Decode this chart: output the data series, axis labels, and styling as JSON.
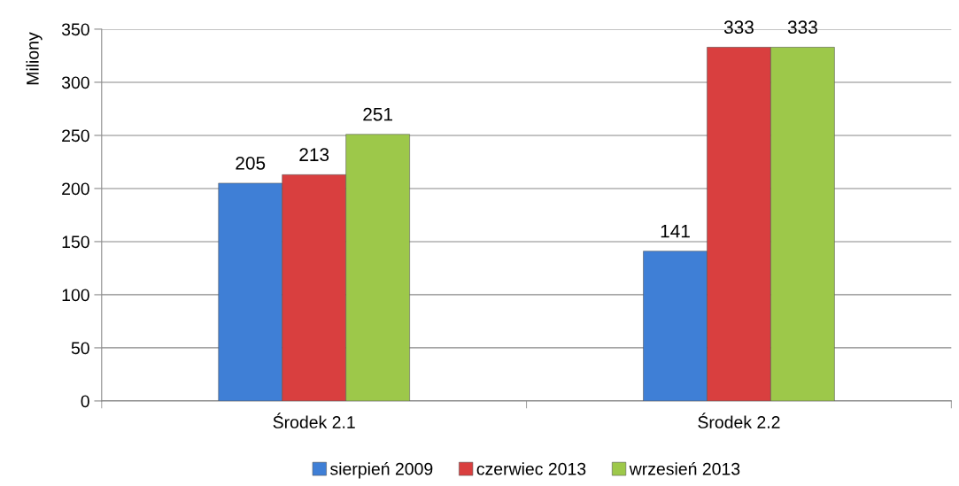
{
  "chart_data": {
    "type": "bar",
    "ylabel": "Miliony",
    "categories": [
      "Środek 2.1",
      "Środek 2.2"
    ],
    "series": [
      {
        "name": "sierpień 2009",
        "color": "#3f7fd6",
        "values": [
          205,
          141
        ]
      },
      {
        "name": "czerwiec 2013",
        "color": "#d93f3f",
        "values": [
          213,
          333
        ]
      },
      {
        "name": "wrzesień 2013",
        "color": "#9dc84a",
        "values": [
          251,
          333
        ]
      }
    ],
    "ylim": [
      0,
      350
    ],
    "yticks": [
      0,
      50,
      100,
      150,
      200,
      250,
      300,
      350
    ],
    "grid": "y",
    "legend": "bottom",
    "data_labels": true
  }
}
